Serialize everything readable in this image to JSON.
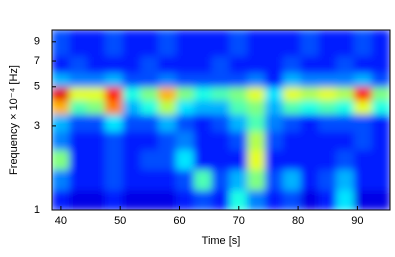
{
  "chart_data": {
    "type": "heatmap",
    "x_label": "Time [s]",
    "y_label": "Frequency × 10⁻⁴ [Hz]",
    "x_bins": [
      38.5,
      41.5,
      44.5,
      47.5,
      50.5,
      53.5,
      56.5,
      59.5,
      62.5,
      65.5,
      68.5,
      71.5,
      74.5,
      77.5,
      80.5,
      83.5,
      86.5,
      89.5,
      92.5,
      95.5
    ],
    "y_bins": [
      1,
      1.3,
      1.7,
      2.2,
      2.8,
      3.5,
      4.2,
      5,
      6,
      7.5,
      10.5
    ],
    "values": [
      [
        0.15,
        0.1,
        0.1,
        0.15,
        0.1,
        0.1,
        0.1,
        0.15,
        0.2,
        0.15,
        0.4,
        0.25,
        0.15,
        0.2,
        0.1,
        0.15,
        0.35,
        0.1,
        0.1
      ],
      [
        0.25,
        0.15,
        0.15,
        0.2,
        0.15,
        0.15,
        0.15,
        0.2,
        0.45,
        0.2,
        0.3,
        0.5,
        0.2,
        0.3,
        0.15,
        0.2,
        0.3,
        0.15,
        0.15
      ],
      [
        0.5,
        0.15,
        0.15,
        0.2,
        0.15,
        0.2,
        0.2,
        0.35,
        0.15,
        0.15,
        0.15,
        0.6,
        0.15,
        0.15,
        0.15,
        0.15,
        0.2,
        0.15,
        0.15
      ],
      [
        0.25,
        0.15,
        0.15,
        0.2,
        0.15,
        0.15,
        0.2,
        0.25,
        0.15,
        0.15,
        0.2,
        0.55,
        0.2,
        0.15,
        0.15,
        0.15,
        0.15,
        0.2,
        0.15
      ],
      [
        0.3,
        0.2,
        0.2,
        0.35,
        0.2,
        0.2,
        0.3,
        0.2,
        0.15,
        0.2,
        0.3,
        0.45,
        0.25,
        0.2,
        0.15,
        0.2,
        0.2,
        0.2,
        0.15
      ],
      [
        0.7,
        0.45,
        0.5,
        0.75,
        0.3,
        0.4,
        0.55,
        0.35,
        0.3,
        0.3,
        0.45,
        0.5,
        0.3,
        0.45,
        0.4,
        0.45,
        0.4,
        0.6,
        0.4
      ],
      [
        0.9,
        0.6,
        0.6,
        0.85,
        0.4,
        0.5,
        0.7,
        0.5,
        0.4,
        0.45,
        0.5,
        0.6,
        0.35,
        0.6,
        0.55,
        0.6,
        0.55,
        0.85,
        0.5
      ],
      [
        0.3,
        0.25,
        0.25,
        0.3,
        0.2,
        0.2,
        0.25,
        0.2,
        0.2,
        0.2,
        0.2,
        0.25,
        0.15,
        0.3,
        0.25,
        0.25,
        0.25,
        0.3,
        0.2
      ],
      [
        0.15,
        0.2,
        0.15,
        0.15,
        0.15,
        0.2,
        0.15,
        0.15,
        0.15,
        0.2,
        0.15,
        0.15,
        0.15,
        0.2,
        0.15,
        0.15,
        0.2,
        0.15,
        0.15
      ],
      [
        0.2,
        0.15,
        0.15,
        0.2,
        0.15,
        0.15,
        0.2,
        0.15,
        0.15,
        0.15,
        0.2,
        0.15,
        0.15,
        0.15,
        0.2,
        0.15,
        0.15,
        0.2,
        0.15
      ]
    ],
    "colormap": "jet",
    "zlim": [
      0,
      1
    ],
    "xlim": [
      38.5,
      95.5
    ],
    "ylim": [
      1,
      10.5
    ],
    "y_scale": "log",
    "xticks": [
      40,
      50,
      60,
      70,
      80,
      90
    ],
    "yticks": [
      1,
      3,
      5,
      7,
      9
    ]
  }
}
